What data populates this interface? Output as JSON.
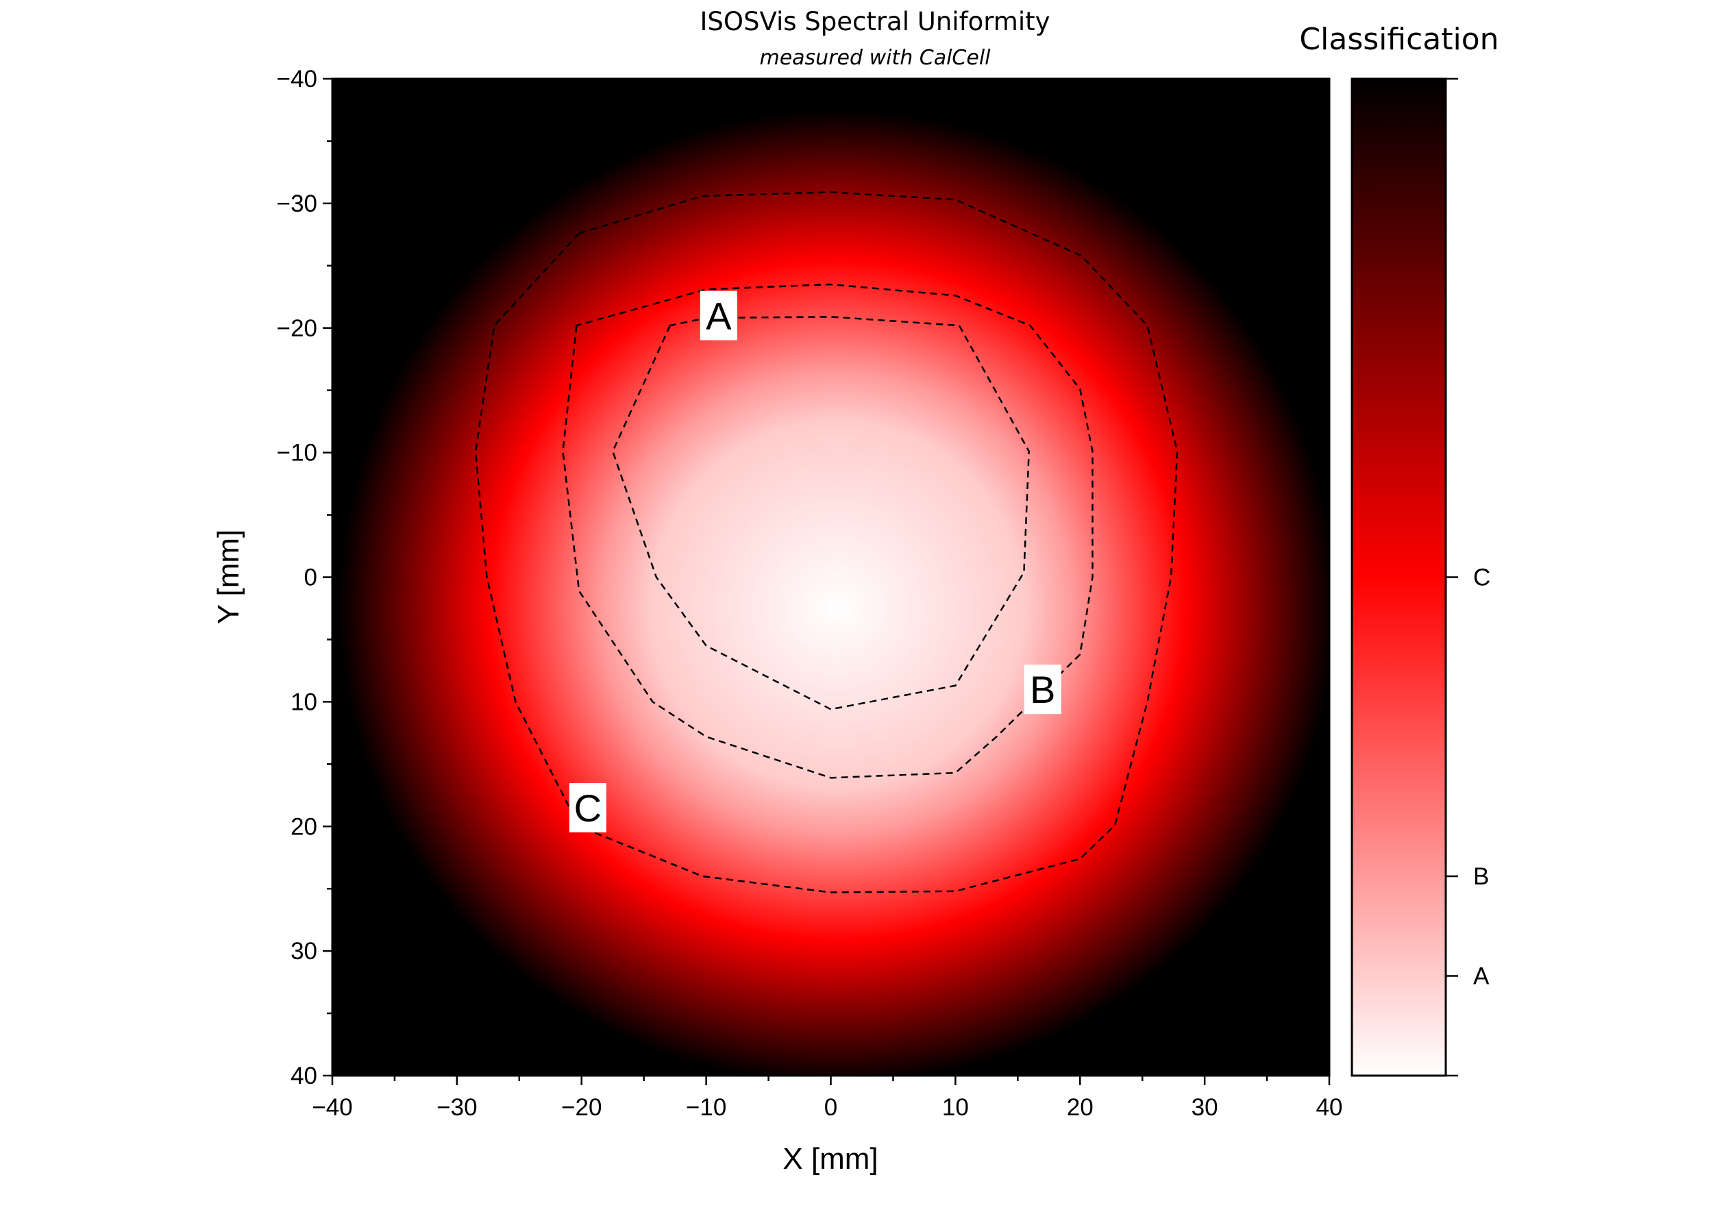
{
  "chart_data": {
    "type": "heatmap",
    "title": "ISOSVis Spectral Uniformity",
    "subtitle": "measured with CalCell",
    "xlabel": "X [mm]",
    "ylabel": "Y [mm]",
    "xlim": [
      -40,
      40
    ],
    "ylim": [
      -40,
      40
    ],
    "y_inverted": true,
    "xticks": [
      "−40",
      "−30",
      "−20",
      "−10",
      "0",
      "10",
      "20",
      "30",
      "40"
    ],
    "yticks": [
      "−40",
      "−30",
      "−20",
      "−10",
      "0",
      "10",
      "20",
      "30",
      "40"
    ],
    "tick_values": [
      -40,
      -30,
      -20,
      -10,
      0,
      10,
      20,
      30,
      40
    ],
    "colorbar": {
      "title": "Classification",
      "colors": [
        "#ffffff",
        "#ff0000",
        "#000000"
      ],
      "ticks": [
        {
          "label": "A",
          "value": 0.1
        },
        {
          "label": "B",
          "value": 0.2
        },
        {
          "label": "C",
          "value": 0.5
        }
      ]
    },
    "contours": [
      {
        "label": "A",
        "label_at": [
          -9,
          -21
        ],
        "points": [
          [
            -12.9,
            -20.2
          ],
          [
            -17.5,
            -10.1
          ],
          [
            -14,
            0
          ],
          [
            -10,
            5.5
          ],
          [
            0,
            10.6
          ],
          [
            10,
            8.7
          ],
          [
            15.5,
            -0.4
          ],
          [
            15.9,
            -10.1
          ],
          [
            10.3,
            -20.2
          ],
          [
            0,
            -20.9
          ],
          [
            -10,
            -20.8
          ]
        ]
      },
      {
        "label": "B",
        "label_at": [
          17,
          9
        ],
        "points": [
          [
            -20.4,
            -20.2
          ],
          [
            -21.5,
            -10.1
          ],
          [
            -20.2,
            1.1
          ],
          [
            -14.3,
            10
          ],
          [
            -10,
            12.8
          ],
          [
            0,
            16.1
          ],
          [
            10,
            15.7
          ],
          [
            13.3,
            12.8
          ],
          [
            20,
            6.2
          ],
          [
            21,
            0
          ],
          [
            21,
            -10.1
          ],
          [
            20,
            -15.1
          ],
          [
            16,
            -20.2
          ],
          [
            10,
            -22.6
          ],
          [
            0,
            -23.5
          ],
          [
            -10,
            -23.1
          ]
        ]
      },
      {
        "label": "C",
        "label_at": [
          -19.5,
          18.5
        ],
        "points": [
          [
            -20.2,
            -27.6
          ],
          [
            -27,
            -20.2
          ],
          [
            -28.5,
            -10.1
          ],
          [
            -27.6,
            0
          ],
          [
            -25.3,
            10
          ],
          [
            -20.2,
            20
          ],
          [
            -10.3,
            24
          ],
          [
            0,
            25.3
          ],
          [
            10,
            25.2
          ],
          [
            20,
            22.6
          ],
          [
            22.8,
            19.9
          ],
          [
            25.4,
            10
          ],
          [
            27.3,
            0
          ],
          [
            27.8,
            -10.1
          ],
          [
            25.4,
            -20.2
          ],
          [
            20.1,
            -25.8
          ],
          [
            10,
            -30.3
          ],
          [
            0,
            -30.9
          ],
          [
            -10.3,
            -30.6
          ]
        ]
      }
    ]
  }
}
